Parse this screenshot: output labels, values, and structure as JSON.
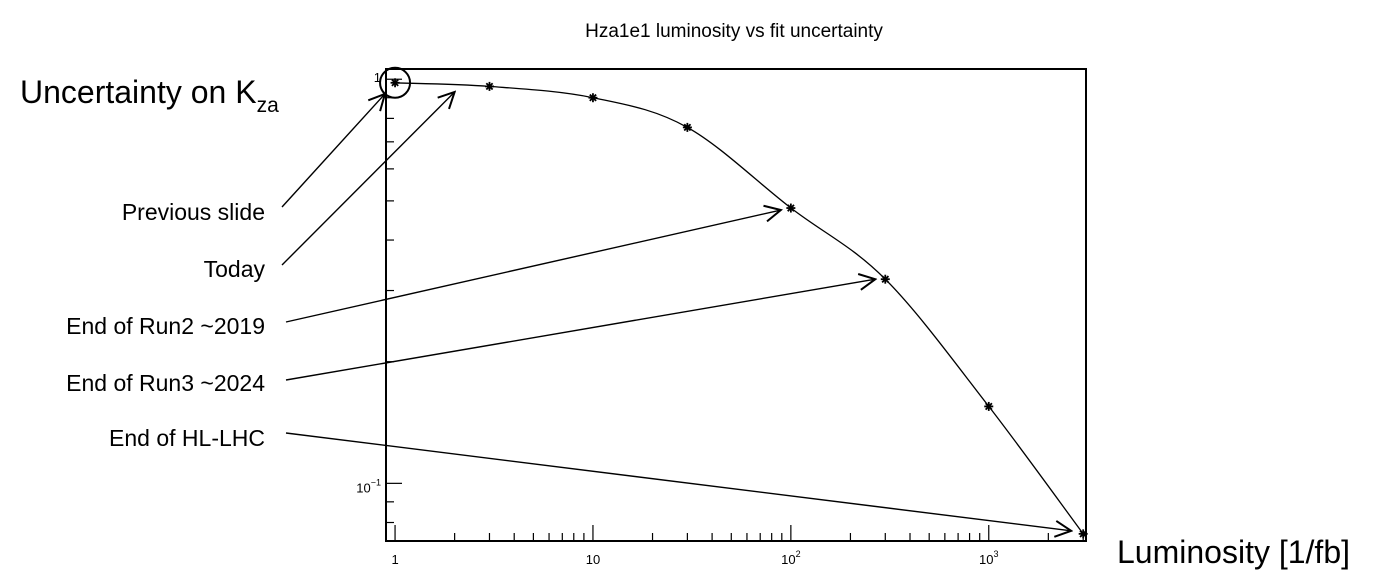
{
  "chart_data": {
    "type": "line",
    "title": "Hza1e1 luminosity vs fit uncertainty",
    "ylabel": {
      "main": "Uncertainty on K",
      "subscript": "za"
    },
    "xlabel": "Luminosity [1/fb]",
    "x_scale": "log",
    "y_scale": "log",
    "xlim": [
      0.9,
      3100
    ],
    "ylim": [
      0.072,
      1.06
    ],
    "x_ticks": [
      {
        "value": 1,
        "base": "1",
        "sup": ""
      },
      {
        "value": 10,
        "base": "10",
        "sup": ""
      },
      {
        "value": 100,
        "base": "10",
        "sup": "2"
      },
      {
        "value": 1000,
        "base": "10",
        "sup": "3"
      }
    ],
    "y_ticks": [
      {
        "value": 1,
        "base": "1",
        "sup": ""
      },
      {
        "value": 0.1,
        "base": "10",
        "sup": "−1"
      }
    ],
    "grid": false,
    "series": [
      {
        "x": [
          1,
          3,
          10,
          30,
          100,
          300,
          1000,
          3000
        ],
        "y": [
          0.98,
          0.96,
          0.9,
          0.76,
          0.48,
          0.32,
          0.155,
          0.075
        ]
      }
    ],
    "annotations": [
      {
        "text": "Previous slide",
        "target_x": 1,
        "target_y": 0.98,
        "target": "circle"
      },
      {
        "text": "Today",
        "target_x": 2,
        "target_y": 0.93,
        "target": "arrow"
      },
      {
        "text": "End of Run2 ~2019",
        "target_x": 100,
        "target_y": 0.48,
        "target": "arrow"
      },
      {
        "text": "End of Run3 ~2024",
        "target_x": 300,
        "target_y": 0.32,
        "target": "arrow"
      },
      {
        "text": "End of HL-LHC",
        "target_x": 3000,
        "target_y": 0.075,
        "target": "arrow"
      }
    ]
  }
}
